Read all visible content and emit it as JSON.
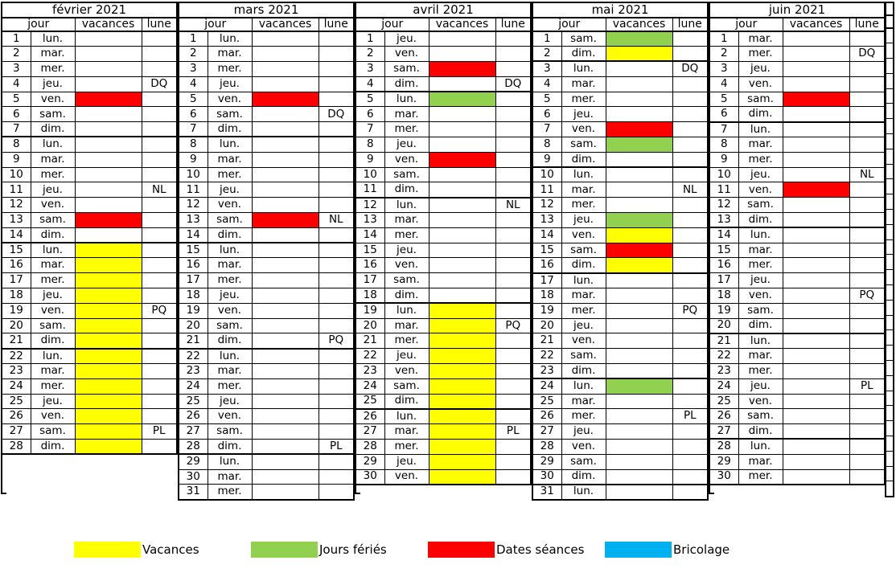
{
  "columns": {
    "jour": "jour",
    "vacances": "vacances",
    "lune": "lune"
  },
  "colors": {
    "vacances": "#FFFF00",
    "ferie": "#92D050",
    "seance": "#FF0000",
    "bricolage": "#00B0F0",
    "border": "#000000",
    "background": "#FFFFFF"
  },
  "color_keys": {
    "v": "vacances",
    "f": "ferie",
    "s": "seance"
  },
  "legend": [
    {
      "key": "vacances",
      "label": "Vacances",
      "color": "#FFFF00"
    },
    {
      "key": "jours-feries",
      "label": "Jours fériés",
      "color": "#92D050"
    },
    {
      "key": "dates-seances",
      "label": "Dates séances",
      "color": "#FF0000"
    },
    {
      "key": "bricolage",
      "label": "Bricolage",
      "color": "#00B0F0"
    }
  ],
  "months": [
    {
      "title": "février 2021",
      "days": [
        [
          1,
          "lun.",
          "",
          ""
        ],
        [
          2,
          "mar.",
          "",
          ""
        ],
        [
          3,
          "mer.",
          "",
          ""
        ],
        [
          4,
          "jeu.",
          "",
          "DQ"
        ],
        [
          5,
          "ven.",
          "s",
          ""
        ],
        [
          6,
          "sam.",
          "",
          ""
        ],
        [
          7,
          "dim.",
          "",
          ""
        ],
        [
          8,
          "lun.",
          "",
          ""
        ],
        [
          9,
          "mar.",
          "",
          ""
        ],
        [
          10,
          "mer.",
          "",
          ""
        ],
        [
          11,
          "jeu.",
          "",
          "NL"
        ],
        [
          12,
          "ven.",
          "",
          ""
        ],
        [
          13,
          "sam.",
          "s",
          ""
        ],
        [
          14,
          "dim.",
          "",
          ""
        ],
        [
          15,
          "lun.",
          "v",
          ""
        ],
        [
          16,
          "mar.",
          "v",
          ""
        ],
        [
          17,
          "mer.",
          "v",
          ""
        ],
        [
          18,
          "jeu.",
          "v",
          ""
        ],
        [
          19,
          "ven.",
          "v",
          "PQ"
        ],
        [
          20,
          "sam.",
          "v",
          ""
        ],
        [
          21,
          "dim.",
          "v",
          ""
        ],
        [
          22,
          "lun.",
          "v",
          ""
        ],
        [
          23,
          "mar.",
          "v",
          ""
        ],
        [
          24,
          "mer.",
          "v",
          ""
        ],
        [
          25,
          "jeu.",
          "v",
          ""
        ],
        [
          26,
          "ven.",
          "v",
          ""
        ],
        [
          27,
          "sam.",
          "v",
          "PL"
        ],
        [
          28,
          "dim.",
          "v",
          ""
        ]
      ]
    },
    {
      "title": "mars 2021",
      "days": [
        [
          1,
          "lun.",
          "",
          ""
        ],
        [
          2,
          "mar.",
          "",
          ""
        ],
        [
          3,
          "mer.",
          "",
          ""
        ],
        [
          4,
          "jeu.",
          "",
          ""
        ],
        [
          5,
          "ven.",
          "s",
          ""
        ],
        [
          6,
          "sam.",
          "",
          "DQ"
        ],
        [
          7,
          "dim.",
          "",
          ""
        ],
        [
          8,
          "lun.",
          "",
          ""
        ],
        [
          9,
          "mar.",
          "",
          ""
        ],
        [
          10,
          "mer.",
          "",
          ""
        ],
        [
          11,
          "jeu.",
          "",
          ""
        ],
        [
          12,
          "ven.",
          "",
          ""
        ],
        [
          13,
          "sam.",
          "s",
          "NL"
        ],
        [
          14,
          "dim.",
          "",
          ""
        ],
        [
          15,
          "lun.",
          "",
          ""
        ],
        [
          16,
          "mar.",
          "",
          ""
        ],
        [
          17,
          "mer.",
          "",
          ""
        ],
        [
          18,
          "jeu.",
          "",
          ""
        ],
        [
          19,
          "ven.",
          "",
          ""
        ],
        [
          20,
          "sam.",
          "",
          ""
        ],
        [
          21,
          "dim.",
          "",
          "PQ"
        ],
        [
          22,
          "lun.",
          "",
          ""
        ],
        [
          23,
          "mar.",
          "",
          ""
        ],
        [
          24,
          "mer.",
          "",
          ""
        ],
        [
          25,
          "jeu.",
          "",
          ""
        ],
        [
          26,
          "ven.",
          "",
          ""
        ],
        [
          27,
          "sam.",
          "",
          ""
        ],
        [
          28,
          "dim.",
          "",
          "PL"
        ],
        [
          29,
          "lun.",
          "",
          ""
        ],
        [
          30,
          "mar.",
          "",
          ""
        ],
        [
          31,
          "mer.",
          "",
          ""
        ]
      ]
    },
    {
      "title": "avril 2021",
      "days": [
        [
          1,
          "jeu.",
          "",
          ""
        ],
        [
          2,
          "ven.",
          "",
          ""
        ],
        [
          3,
          "sam.",
          "s",
          ""
        ],
        [
          4,
          "dim.",
          "",
          "DQ"
        ],
        [
          5,
          "lun.",
          "f",
          ""
        ],
        [
          6,
          "mar.",
          "",
          ""
        ],
        [
          7,
          "mer.",
          "",
          ""
        ],
        [
          8,
          "jeu.",
          "",
          ""
        ],
        [
          9,
          "ven.",
          "s",
          ""
        ],
        [
          10,
          "sam.",
          "",
          ""
        ],
        [
          11,
          "dim.",
          "",
          ""
        ],
        [
          12,
          "lun.",
          "",
          "NL"
        ],
        [
          13,
          "mar.",
          "",
          ""
        ],
        [
          14,
          "mer.",
          "",
          ""
        ],
        [
          15,
          "jeu.",
          "",
          ""
        ],
        [
          16,
          "ven.",
          "",
          ""
        ],
        [
          17,
          "sam.",
          "",
          ""
        ],
        [
          18,
          "dim.",
          "",
          ""
        ],
        [
          19,
          "lun.",
          "v",
          ""
        ],
        [
          20,
          "mar.",
          "v",
          "PQ"
        ],
        [
          21,
          "mer.",
          "v",
          ""
        ],
        [
          22,
          "jeu.",
          "v",
          ""
        ],
        [
          23,
          "ven.",
          "v",
          ""
        ],
        [
          24,
          "sam.",
          "v",
          ""
        ],
        [
          25,
          "dim.",
          "v",
          ""
        ],
        [
          26,
          "lun.",
          "v",
          ""
        ],
        [
          27,
          "mar.",
          "v",
          "PL"
        ],
        [
          28,
          "mer.",
          "v",
          ""
        ],
        [
          29,
          "jeu.",
          "v",
          ""
        ],
        [
          30,
          "ven.",
          "v",
          ""
        ]
      ]
    },
    {
      "title": "mai 2021",
      "days": [
        [
          1,
          "sam.",
          "f",
          ""
        ],
        [
          2,
          "dim.",
          "v",
          ""
        ],
        [
          3,
          "lun.",
          "",
          "DQ"
        ],
        [
          4,
          "mar.",
          "",
          ""
        ],
        [
          5,
          "mer.",
          "",
          ""
        ],
        [
          6,
          "jeu.",
          "",
          ""
        ],
        [
          7,
          "ven.",
          "s",
          ""
        ],
        [
          8,
          "sam.",
          "f",
          ""
        ],
        [
          9,
          "dim.",
          "",
          ""
        ],
        [
          10,
          "lun.",
          "",
          ""
        ],
        [
          11,
          "mar.",
          "",
          "NL"
        ],
        [
          12,
          "mer.",
          "",
          ""
        ],
        [
          13,
          "jeu.",
          "f",
          ""
        ],
        [
          14,
          "ven.",
          "v",
          ""
        ],
        [
          15,
          "sam.",
          "s",
          ""
        ],
        [
          16,
          "dim.",
          "v",
          ""
        ],
        [
          17,
          "lun.",
          "",
          ""
        ],
        [
          18,
          "mar.",
          "",
          ""
        ],
        [
          19,
          "mer.",
          "",
          "PQ"
        ],
        [
          20,
          "jeu.",
          "",
          ""
        ],
        [
          21,
          "ven.",
          "",
          ""
        ],
        [
          22,
          "sam.",
          "",
          ""
        ],
        [
          23,
          "dim.",
          "",
          ""
        ],
        [
          24,
          "lun.",
          "f",
          ""
        ],
        [
          25,
          "mar.",
          "",
          ""
        ],
        [
          26,
          "mer.",
          "",
          "PL"
        ],
        [
          27,
          "jeu.",
          "",
          ""
        ],
        [
          28,
          "ven.",
          "",
          ""
        ],
        [
          29,
          "sam.",
          "",
          ""
        ],
        [
          30,
          "dim.",
          "",
          ""
        ],
        [
          31,
          "lun.",
          "",
          ""
        ]
      ]
    },
    {
      "title": "juin 2021",
      "days": [
        [
          1,
          "mar.",
          "",
          ""
        ],
        [
          2,
          "mer.",
          "",
          "DQ"
        ],
        [
          3,
          "jeu.",
          "",
          ""
        ],
        [
          4,
          "ven.",
          "",
          ""
        ],
        [
          5,
          "sam.",
          "s",
          ""
        ],
        [
          6,
          "dim.",
          "",
          ""
        ],
        [
          7,
          "lun.",
          "",
          ""
        ],
        [
          8,
          "mar.",
          "",
          ""
        ],
        [
          9,
          "mer.",
          "",
          ""
        ],
        [
          10,
          "jeu.",
          "",
          "NL"
        ],
        [
          11,
          "ven.",
          "s",
          ""
        ],
        [
          12,
          "sam.",
          "",
          ""
        ],
        [
          13,
          "dim.",
          "",
          ""
        ],
        [
          14,
          "lun.",
          "",
          ""
        ],
        [
          15,
          "mar.",
          "",
          ""
        ],
        [
          16,
          "mer.",
          "",
          ""
        ],
        [
          17,
          "jeu.",
          "",
          ""
        ],
        [
          18,
          "ven.",
          "",
          "PQ"
        ],
        [
          19,
          "sam.",
          "",
          ""
        ],
        [
          20,
          "dim.",
          "",
          ""
        ],
        [
          21,
          "lun.",
          "",
          ""
        ],
        [
          22,
          "mar.",
          "",
          ""
        ],
        [
          23,
          "mer.",
          "",
          ""
        ],
        [
          24,
          "jeu.",
          "",
          "PL"
        ],
        [
          25,
          "ven.",
          "",
          ""
        ],
        [
          26,
          "sam.",
          "",
          ""
        ],
        [
          27,
          "dim.",
          "",
          ""
        ],
        [
          28,
          "lun.",
          "",
          ""
        ],
        [
          29,
          "mar.",
          "",
          ""
        ],
        [
          30,
          "mer.",
          "",
          ""
        ]
      ]
    }
  ],
  "partial_month": {
    "visible": true,
    "rows": 31
  }
}
